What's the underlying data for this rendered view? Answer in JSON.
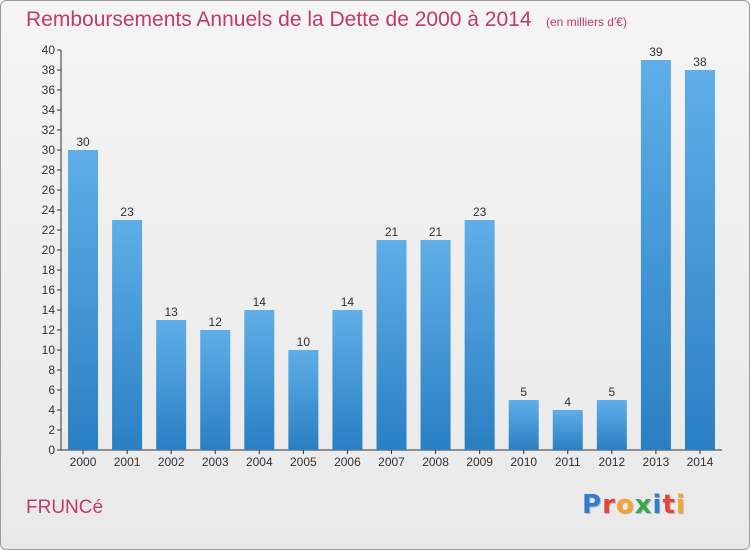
{
  "header": {
    "title": "Remboursements Annuels de la Dette de 2000 à 2014",
    "unit": "(en milliers d'€)"
  },
  "footer": {
    "commune": "FRUNCé",
    "logo_text": "Proxiti"
  },
  "colors": {
    "title": "#c23a66",
    "bar_top": "#5faee8",
    "bar_bottom": "#2a7fc3",
    "logo": [
      "#2f7fd0",
      "#e4453a",
      "#f2a531",
      "#3aa84a",
      "#2f7fd0",
      "#e4453a",
      "#f2a531"
    ]
  },
  "chart_data": {
    "type": "bar",
    "title": "Remboursements Annuels de la Dette de 2000 à 2014",
    "subtitle": "(en milliers d'€)",
    "xlabel": "",
    "ylabel": "",
    "categories": [
      "2000",
      "2001",
      "2002",
      "2003",
      "2004",
      "2005",
      "2006",
      "2007",
      "2008",
      "2009",
      "2010",
      "2011",
      "2012",
      "2013",
      "2014"
    ],
    "values": [
      30,
      23,
      13,
      12,
      14,
      10,
      14,
      21,
      21,
      23,
      5,
      4,
      5,
      39,
      38
    ],
    "ylim": [
      0,
      40
    ],
    "yticks": [
      0,
      2,
      4,
      6,
      8,
      10,
      12,
      14,
      16,
      18,
      20,
      22,
      24,
      26,
      28,
      30,
      32,
      34,
      36,
      38,
      40
    ],
    "grid": false,
    "legend": "none"
  }
}
